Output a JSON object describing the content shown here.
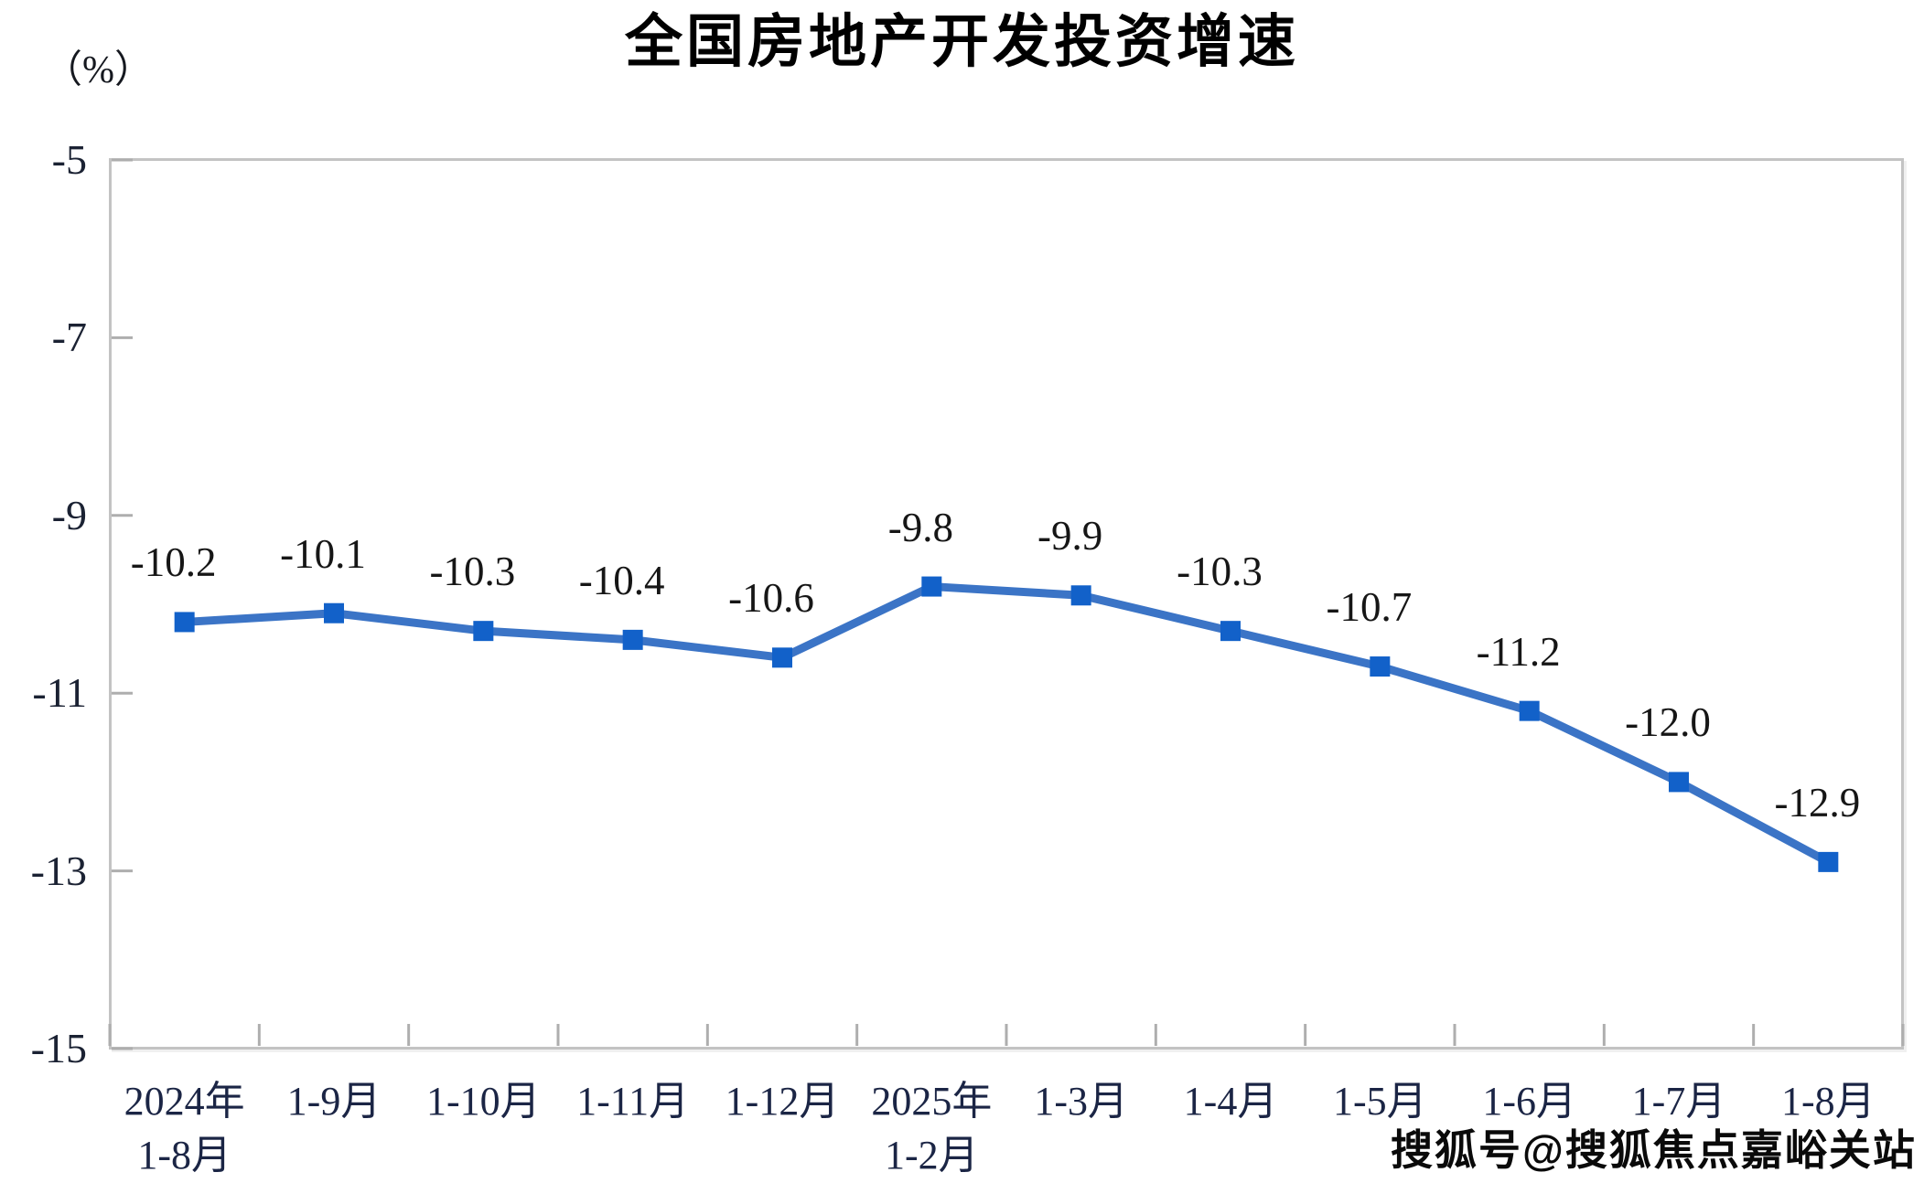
{
  "chart_data": {
    "type": "line",
    "title": "全国房地产开发投资增速",
    "unit_label": "（%）",
    "categories": [
      {
        "label": "2024年",
        "sublabel": "1-8月"
      },
      {
        "label": "1-9月"
      },
      {
        "label": "1-10月"
      },
      {
        "label": "1-11月"
      },
      {
        "label": "1-12月"
      },
      {
        "label": "2025年",
        "sublabel": "1-2月"
      },
      {
        "label": "1-3月"
      },
      {
        "label": "1-4月"
      },
      {
        "label": "1-5月"
      },
      {
        "label": "1-6月"
      },
      {
        "label": "1-7月"
      },
      {
        "label": "1-8月"
      }
    ],
    "values": [
      -10.2,
      -10.1,
      -10.3,
      -10.4,
      -10.6,
      -9.8,
      -9.9,
      -10.3,
      -10.7,
      -11.2,
      -12.0,
      -12.9
    ],
    "xlabel": "",
    "ylabel": "（%）",
    "ylim": [
      -15,
      -5
    ],
    "yticks": [
      -5,
      -7,
      -9,
      -11,
      -13,
      -15
    ],
    "grid": false,
    "legend": "none",
    "line_color": "#3B74C6",
    "marker_color": "#1261C9",
    "axis_color": "#c3c3c3",
    "tick_color": "#aeaeae"
  },
  "watermark": {
    "text": "搜狐号@搜狐焦点嘉峪关站"
  }
}
